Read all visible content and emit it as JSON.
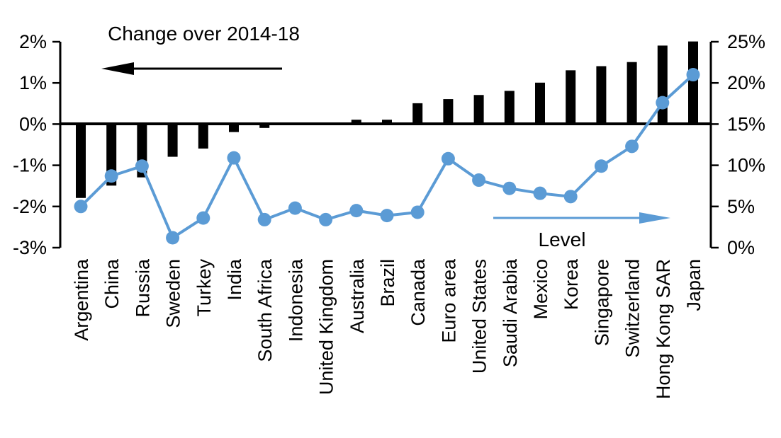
{
  "chart_data": {
    "type": "bar+line combo, dual axis",
    "categories": [
      "Argentina",
      "China",
      "Russia",
      "Sweden",
      "Turkey",
      "India",
      "South Africa",
      "Indonesia",
      "United Kingdom",
      "Australia",
      "Brazil",
      "Canada",
      "Euro area",
      "United States",
      "Saudi Arabia",
      "Mexico",
      "Korea",
      "Singapore",
      "Switzerland",
      "Hong Kong SAR",
      "Japan"
    ],
    "series": [
      {
        "name": "Change over 2014-18",
        "type": "bar",
        "axis": "left",
        "color": "#000000",
        "values": [
          -1.8,
          -1.5,
          -1.3,
          -0.8,
          -0.6,
          -0.2,
          -0.1,
          0.0,
          0.0,
          0.1,
          0.1,
          0.5,
          0.6,
          0.7,
          0.8,
          1.0,
          1.3,
          1.4,
          1.5,
          1.9,
          2.0
        ]
      },
      {
        "name": "Level",
        "type": "line",
        "axis": "right",
        "color": "#5B9BD5",
        "values": [
          5.0,
          8.7,
          9.9,
          1.2,
          3.6,
          10.9,
          3.4,
          4.8,
          3.4,
          4.5,
          3.9,
          4.3,
          10.8,
          8.2,
          7.2,
          6.6,
          6.2,
          9.9,
          12.3,
          17.6,
          21.0
        ]
      }
    ],
    "left_axis": {
      "tick_labels": [
        "2%",
        "1%",
        "0%",
        "-1%",
        "-2%",
        "-3%"
      ],
      "max": 2,
      "min": -3
    },
    "right_axis": {
      "tick_labels": [
        "25%",
        "20%",
        "15%",
        "10%",
        "5%",
        "0%"
      ],
      "max": 25,
      "min": 0
    },
    "grid": "off",
    "annotations": {
      "bar_series_label": {
        "text": "Change over 2014-18",
        "arrow_direction": "left",
        "color": "#000000"
      },
      "line_series_label": {
        "text": "Level",
        "arrow_direction": "right",
        "color": "#5B9BD5"
      }
    }
  }
}
